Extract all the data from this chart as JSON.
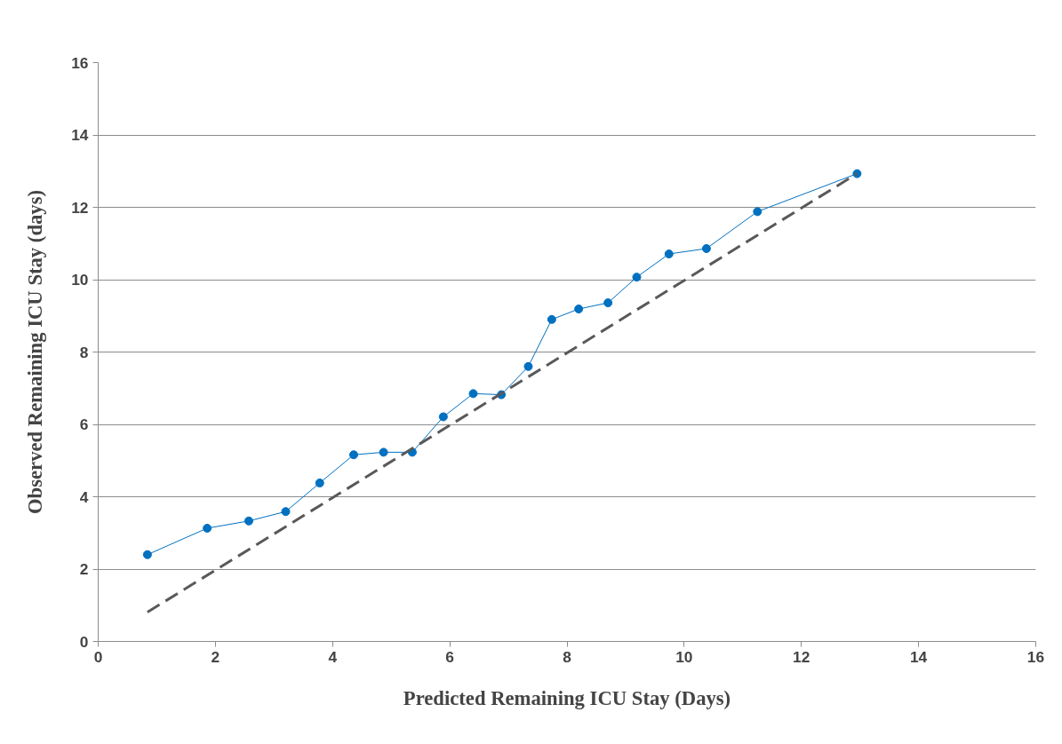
{
  "chart_data": {
    "type": "line",
    "xlabel": "Predicted Remaining ICU Stay (Days)",
    "ylabel": "Observed Remaining ICU Stay (days)",
    "xlim": [
      0,
      16
    ],
    "xticks": [
      0,
      2,
      4,
      6,
      8,
      10,
      12,
      14,
      16
    ],
    "ylim": [
      0,
      16
    ],
    "yticks": [
      0,
      2,
      4,
      6,
      8,
      10,
      12,
      14,
      16
    ],
    "grid": "y",
    "series": [
      {
        "color": "#0070c0",
        "marker": "circle",
        "line_style": "solid",
        "x": [
          0.84,
          1.86,
          2.57,
          3.2,
          3.78,
          4.36,
          4.87,
          5.36,
          5.89,
          6.4,
          6.88,
          7.34,
          7.74,
          8.2,
          8.7,
          9.19,
          9.74,
          10.38,
          11.25,
          12.95
        ],
        "values": [
          2.4,
          3.13,
          3.33,
          3.59,
          4.38,
          5.16,
          5.23,
          5.23,
          6.21,
          6.85,
          6.82,
          7.6,
          8.9,
          9.19,
          9.36,
          10.07,
          10.71,
          10.86,
          11.88,
          12.93
        ]
      },
      {
        "color": "#595959",
        "marker": "none",
        "line_style": "dashed",
        "x": [
          0.84,
          12.95
        ],
        "values": [
          0.81,
          12.93
        ]
      }
    ]
  }
}
